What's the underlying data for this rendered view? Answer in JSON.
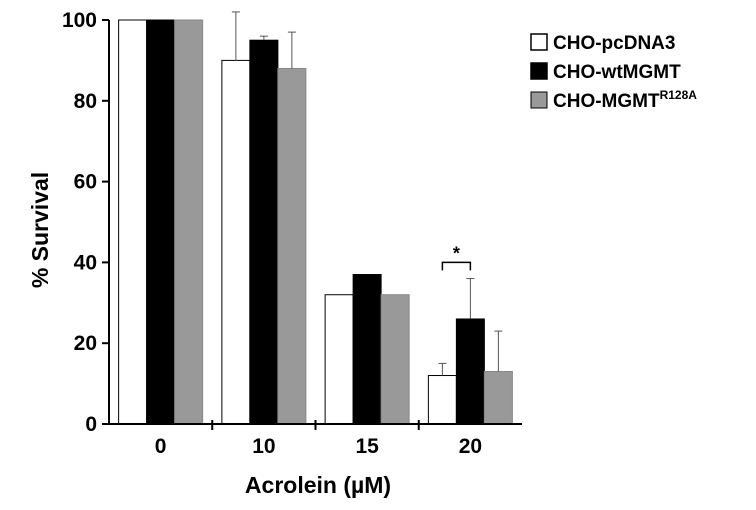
{
  "chart_data": {
    "type": "bar",
    "title": "",
    "xlabel": "Acrolein (µM)",
    "ylabel": "% Survival",
    "ylim": [
      0,
      100
    ],
    "yticks": [
      "0",
      "20",
      "40",
      "60",
      "80",
      "100"
    ],
    "categories": [
      "0",
      "10",
      "15",
      "20"
    ],
    "series": [
      {
        "name": "CHO-pcDNA3",
        "color": "#ffffff",
        "values": [
          100,
          90,
          32,
          12
        ],
        "error": [
          0,
          12,
          0,
          3
        ]
      },
      {
        "name": "CHO-wtMGMT",
        "color": "#000000",
        "values": [
          100,
          95,
          37,
          26
        ],
        "error": [
          0,
          1,
          0,
          10
        ]
      },
      {
        "name": "CHO-MGMT",
        "superscript": "R128A",
        "color": "#999999",
        "values": [
          100,
          88,
          32,
          13
        ],
        "error": [
          0,
          9,
          0,
          10
        ]
      }
    ],
    "annotations": [
      {
        "text": "*",
        "category": "20",
        "between": [
          "CHO-pcDNA3",
          "CHO-wtMGMT"
        ]
      }
    ],
    "legend": "right",
    "grid": false
  }
}
